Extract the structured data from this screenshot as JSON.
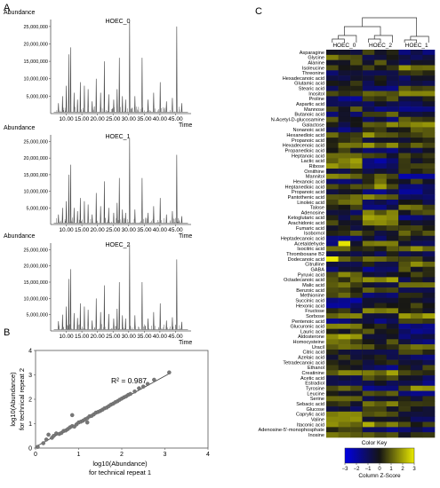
{
  "panels": {
    "a": "A",
    "b": "B",
    "c": "C"
  },
  "chart_data": [
    {
      "type": "line",
      "title": "HOEC_0",
      "ylabel": "Abundance",
      "xlabel": "Time",
      "ylim": [
        0,
        27000000
      ],
      "xlim": [
        5,
        50
      ],
      "ytick_labels": [
        "25,000,000",
        "20,000,000",
        "15,000,000",
        "10,000,000",
        "5,000,000"
      ],
      "yticks": [
        25000000,
        20000000,
        15000000,
        10000000,
        5000000
      ],
      "xtick_labels": [
        "10.00",
        "15.00",
        "20.00",
        "25.00",
        "30.00",
        "35.00",
        "40.00",
        "45.00"
      ],
      "xticks": [
        10,
        15,
        20,
        25,
        30,
        35,
        40,
        45
      ],
      "peaks": [
        [
          7.5,
          3000000
        ],
        [
          8.8,
          5000000
        ],
        [
          10.0,
          8000000
        ],
        [
          10.8,
          17000000
        ],
        [
          11.4,
          19000000
        ],
        [
          12.5,
          6000000
        ],
        [
          13.6,
          4000000
        ],
        [
          14.5,
          9000000
        ],
        [
          15.8,
          8000000
        ],
        [
          17.0,
          7000000
        ],
        [
          18.3,
          3500000
        ],
        [
          19.6,
          10000000
        ],
        [
          21.0,
          6000000
        ],
        [
          22.2,
          15000000
        ],
        [
          23.6,
          5500000
        ],
        [
          25.2,
          4000000
        ],
        [
          26.3,
          7000000
        ],
        [
          27.0,
          16000000
        ],
        [
          28.0,
          5000000
        ],
        [
          29.0,
          4000000
        ],
        [
          30.3,
          27000000
        ],
        [
          32.0,
          5000000
        ],
        [
          34.3,
          16000000
        ],
        [
          36.2,
          4000000
        ],
        [
          38.0,
          6000000
        ],
        [
          40.1,
          9000000
        ],
        [
          42.1,
          3500000
        ],
        [
          44.0,
          4500000
        ],
        [
          45.4,
          25000000
        ],
        [
          47.0,
          3000000
        ]
      ]
    },
    {
      "type": "line",
      "title": "HOEC_1",
      "ylabel": "Abundance",
      "xlabel": "Time",
      "ylim": [
        0,
        27000000
      ],
      "xlim": [
        5,
        50
      ],
      "ytick_labels": [
        "25,000,000",
        "20,000,000",
        "15,000,000",
        "10,000,000",
        "5,000,000"
      ],
      "yticks": [
        25000000,
        20000000,
        15000000,
        10000000,
        5000000
      ],
      "xtick_labels": [
        "10.00",
        "15.00",
        "20.00",
        "25.00",
        "30.00",
        "35.00",
        "40.00",
        "45.00"
      ],
      "xticks": [
        10,
        15,
        20,
        25,
        30,
        35,
        40,
        45
      ],
      "peaks": [
        [
          7.5,
          3000000
        ],
        [
          8.8,
          5000000
        ],
        [
          10.0,
          7000000
        ],
        [
          10.8,
          15000000
        ],
        [
          11.4,
          18000000
        ],
        [
          12.5,
          5000000
        ],
        [
          13.6,
          4000000
        ],
        [
          14.5,
          8000000
        ],
        [
          15.8,
          7000000
        ],
        [
          17.0,
          6000000
        ],
        [
          18.3,
          3000000
        ],
        [
          19.6,
          9500000
        ],
        [
          21.0,
          5500000
        ],
        [
          22.2,
          13000000
        ],
        [
          23.6,
          5000000
        ],
        [
          25.2,
          3500000
        ],
        [
          26.3,
          6500000
        ],
        [
          27.0,
          14000000
        ],
        [
          28.0,
          4500000
        ],
        [
          29.0,
          3500000
        ],
        [
          30.3,
          26000000
        ],
        [
          32.0,
          4500000
        ],
        [
          34.3,
          14000000
        ],
        [
          36.2,
          3500000
        ],
        [
          38.0,
          5500000
        ],
        [
          40.1,
          8000000
        ],
        [
          42.1,
          3000000
        ],
        [
          44.0,
          4000000
        ],
        [
          45.4,
          21000000
        ],
        [
          47.0,
          2500000
        ]
      ]
    },
    {
      "type": "line",
      "title": "HOEC_2",
      "ylabel": "Abundance",
      "xlabel": "Time",
      "ylim": [
        0,
        27000000
      ],
      "xlim": [
        5,
        50
      ],
      "ytick_labels": [
        "25,000,000",
        "20,000,000",
        "15,000,000",
        "10,000,000",
        "5,000,000"
      ],
      "yticks": [
        25000000,
        20000000,
        15000000,
        10000000,
        5000000
      ],
      "xtick_labels": [
        "10.00",
        "15.00",
        "20.00",
        "25.00",
        "30.00",
        "35.00",
        "40.00",
        "45.00"
      ],
      "xticks": [
        10,
        15,
        20,
        25,
        30,
        35,
        40,
        45
      ],
      "peaks": [
        [
          7.5,
          3000000
        ],
        [
          8.8,
          5000000
        ],
        [
          10.0,
          7500000
        ],
        [
          10.8,
          16000000
        ],
        [
          11.4,
          19000000
        ],
        [
          12.5,
          5500000
        ],
        [
          13.6,
          4000000
        ],
        [
          14.5,
          8500000
        ],
        [
          15.8,
          7500000
        ],
        [
          17.0,
          6500000
        ],
        [
          18.3,
          3200000
        ],
        [
          19.6,
          10000000
        ],
        [
          21.0,
          5800000
        ],
        [
          22.2,
          14000000
        ],
        [
          23.6,
          5200000
        ],
        [
          25.2,
          3800000
        ],
        [
          26.3,
          6800000
        ],
        [
          27.0,
          15000000
        ],
        [
          28.0,
          4800000
        ],
        [
          29.0,
          3800000
        ],
        [
          30.3,
          26500000
        ],
        [
          32.0,
          4800000
        ],
        [
          34.3,
          15000000
        ],
        [
          36.2,
          3800000
        ],
        [
          38.0,
          5800000
        ],
        [
          40.1,
          8500000
        ],
        [
          42.1,
          3200000
        ],
        [
          44.0,
          4200000
        ],
        [
          45.4,
          22000000
        ],
        [
          47.0,
          2800000
        ]
      ]
    },
    {
      "type": "scatter",
      "annotation": "R² = 0.987",
      "xlabel": "log10(Abundance)\nfor technical repeat 1",
      "ylabel": "log10(Abundance)\nfor technical repeat 2",
      "xlim": [
        0,
        4
      ],
      "ylim": [
        0,
        4
      ],
      "xtick_labels": [
        "0",
        "1",
        "2",
        "3",
        "4"
      ],
      "ytick_labels": [
        "0",
        "1",
        "2",
        "3",
        "4"
      ],
      "points": [
        [
          0.05,
          0.05
        ],
        [
          0.18,
          0.2
        ],
        [
          0.25,
          0.35
        ],
        [
          0.3,
          0.55
        ],
        [
          0.38,
          0.42
        ],
        [
          0.42,
          0.5
        ],
        [
          0.48,
          0.6
        ],
        [
          0.55,
          0.58
        ],
        [
          0.6,
          0.62
        ],
        [
          0.65,
          0.7
        ],
        [
          0.7,
          0.72
        ],
        [
          0.75,
          0.78
        ],
        [
          0.8,
          0.85
        ],
        [
          0.85,
          0.9
        ],
        [
          0.9,
          0.88
        ],
        [
          0.95,
          0.97
        ],
        [
          1.0,
          1.05
        ],
        [
          1.05,
          1.08
        ],
        [
          1.1,
          1.12
        ],
        [
          1.15,
          1.18
        ],
        [
          1.2,
          1.22
        ],
        [
          1.25,
          1.3
        ],
        [
          1.3,
          1.32
        ],
        [
          1.35,
          1.38
        ],
        [
          1.4,
          1.45
        ],
        [
          1.45,
          1.48
        ],
        [
          1.5,
          1.52
        ],
        [
          1.55,
          1.57
        ],
        [
          1.6,
          1.63
        ],
        [
          1.65,
          1.66
        ],
        [
          1.7,
          1.72
        ],
        [
          1.75,
          1.78
        ],
        [
          1.8,
          1.82
        ],
        [
          1.85,
          1.88
        ],
        [
          1.9,
          1.92
        ],
        [
          1.95,
          1.98
        ],
        [
          2.0,
          2.03
        ],
        [
          2.05,
          2.08
        ],
        [
          2.1,
          2.12
        ],
        [
          2.15,
          2.18
        ],
        [
          2.2,
          2.22
        ],
        [
          2.3,
          2.32
        ],
        [
          2.4,
          2.45
        ],
        [
          2.5,
          2.52
        ],
        [
          2.6,
          2.63
        ],
        [
          2.75,
          2.8
        ],
        [
          0.85,
          1.35
        ],
        [
          1.2,
          1.05
        ],
        [
          3.1,
          3.1
        ]
      ],
      "fit_line": [
        [
          0.05,
          0.1
        ],
        [
          3.1,
          3.05
        ]
      ]
    },
    {
      "type": "heatmap",
      "columns": [
        "HOEC_0",
        "HOEC_2",
        "HOEC_1"
      ],
      "rows": [
        "Asparagine",
        "Glycine",
        "Alanine",
        "Isoleucine",
        "Threonine",
        "Hexadecanoic acid",
        "Glutamic acid",
        "Stearic acid",
        "Inositol",
        "Proline",
        "Aspartic acid",
        "Mannose",
        "Butanoic acid",
        "N-Acetyl-D-glucosamine",
        "Galactose",
        "Nonanoic acid",
        "Hexanedioic acid",
        "Propanoic acid",
        "Hexadecenoic acid",
        "Propanedioic acid",
        "Heptanoic acid",
        "Lactic acid",
        "Ribose",
        "Ornithine",
        "Mannitol",
        "Hexanoic acid",
        "Heptanedioic acid",
        "Propanoic acid",
        "Pantothenic acid",
        "Linoleic acid",
        "Talose",
        "Adenosine",
        "Ketoglutaric acid",
        "Arachidonic acid",
        "Fumaric acid",
        "Isobornol",
        "Heptadecanoic acid",
        "Acetaldehyde",
        "Isocitric acid",
        "Thromboxane B2",
        "Dodecanoic acid",
        "Citrulline",
        "GABA",
        "Pyruvic acid",
        "Octadecanoic acid",
        "Malic acid",
        "Benzoic acid",
        "Methionine",
        "Succinic acid",
        "Hexonic acid",
        "Fructose",
        "Sorbose",
        "Pentenoic acid",
        "Glucuronic acid",
        "Lauric acid",
        "Aldosterone",
        "Homocysteine",
        "Uracil",
        "Citric acid",
        "Azelaic acid",
        "Tetradecanoic acid",
        "Ethanol",
        "Creatinine",
        "Acetic acid",
        "Estradiol",
        "Tyrosine",
        "Leucine",
        "Serine",
        "Sebacic acid",
        "Glucose",
        "Caprylic acid",
        "Valine",
        "Itaconic acid",
        "Adenosine-5'-monophosphate",
        "Inosine"
      ],
      "column_groups": [
        3,
        3,
        3
      ],
      "legend": {
        "title": "Color Key",
        "xlabel": "Column Z-Score",
        "tick_labels": [
          "−3",
          "−2",
          "−1",
          "0",
          "1",
          "2",
          "3"
        ],
        "range": [
          -3,
          3
        ]
      }
    }
  ]
}
